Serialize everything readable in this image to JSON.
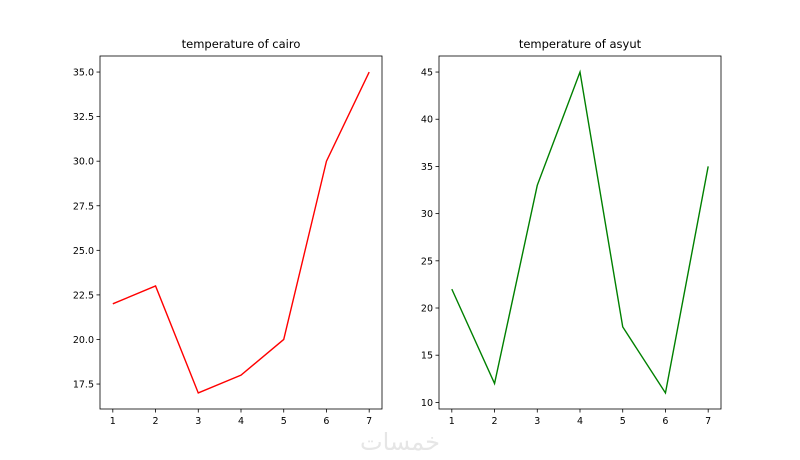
{
  "chart_data": [
    {
      "type": "line",
      "title": "temperature of cairo",
      "xlabel": "",
      "ylabel": "",
      "x": [
        1,
        2,
        3,
        4,
        5,
        6,
        7
      ],
      "series": [
        {
          "values": [
            22,
            23,
            17,
            18,
            20,
            30,
            35
          ],
          "color": "#ff0000"
        }
      ],
      "xticks": [
        "1",
        "2",
        "3",
        "4",
        "5",
        "6",
        "7"
      ],
      "yticks": [
        "17.5",
        "20.0",
        "22.5",
        "25.0",
        "27.5",
        "30.0",
        "32.5",
        "35.0"
      ],
      "ylim": [
        16.1,
        35.9
      ],
      "xlim": [
        0.7,
        7.3
      ],
      "grid": false,
      "legend": "none"
    },
    {
      "type": "line",
      "title": "temperature of asyut",
      "xlabel": "",
      "ylabel": "",
      "x": [
        1,
        2,
        3,
        4,
        5,
        6,
        7
      ],
      "series": [
        {
          "values": [
            22,
            12,
            33,
            45,
            18,
            11,
            35
          ],
          "color": "#008000"
        }
      ],
      "xticks": [
        "1",
        "2",
        "3",
        "4",
        "5",
        "6",
        "7"
      ],
      "yticks": [
        "10",
        "15",
        "20",
        "25",
        "30",
        "35",
        "40",
        "45"
      ],
      "ylim": [
        9.3,
        46.7
      ],
      "xlim": [
        0.7,
        7.3
      ],
      "grid": false,
      "legend": "none"
    }
  ],
  "watermark": {
    "text": "خمسات"
  }
}
